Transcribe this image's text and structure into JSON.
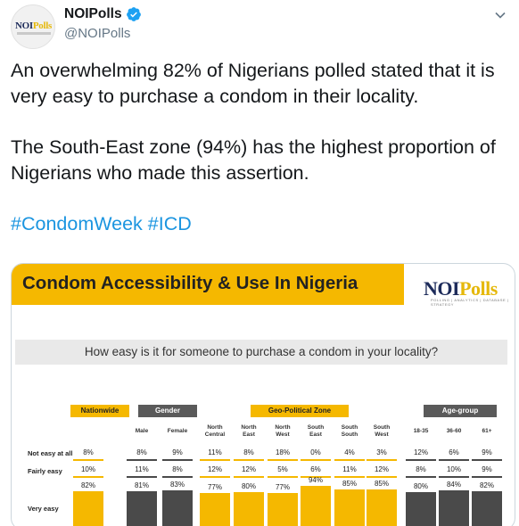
{
  "user": {
    "name": "NOIPolls",
    "handle": "@NOIPolls",
    "avatar_text": "NOI",
    "avatar_text_accent": "Polls"
  },
  "tweet": {
    "paragraph1": "An overwhelming 82% of Nigerians polled stated that it is very easy to purchase a condom in their locality.",
    "paragraph2": "The South-East zone (94%) has the highest proportion of Nigerians who made this assertion.",
    "hashtags": [
      "#CondomWeek",
      "#ICD"
    ]
  },
  "card": {
    "title": "Condom Accessibility & Use In Nigeria",
    "brand": "NOI",
    "brand_accent": "Polls",
    "brand_sub": "POLLING | ANALYTICS | DATABASE | STRATEGY",
    "question": "How easy is it for someone to purchase a condom in your locality?",
    "groups": [
      "Nationwide",
      "Gender",
      "Geo-Political Zone",
      "Age-group"
    ],
    "row_labels": [
      "Not easy at all",
      "Fairly easy",
      "Very easy"
    ]
  },
  "chart_data": {
    "type": "bar",
    "title": "Condom Accessibility & Use In Nigeria",
    "subtitle": "How easy is it for someone to purchase a condom in your locality?",
    "categories": [
      "Nationwide",
      "Male",
      "Female",
      "North Central",
      "North East",
      "North West",
      "South East",
      "South South",
      "South West",
      "18-35",
      "36-60",
      "61+"
    ],
    "category_lines": [
      [
        ""
      ],
      [
        "Male"
      ],
      [
        "Female"
      ],
      [
        "North",
        "Central"
      ],
      [
        "North",
        "East"
      ],
      [
        "North",
        "West"
      ],
      [
        "South",
        "East"
      ],
      [
        "South",
        "South"
      ],
      [
        "South",
        "West"
      ],
      [
        "18-35"
      ],
      [
        "36-60"
      ],
      [
        "61+"
      ]
    ],
    "series": [
      {
        "name": "Not easy at all",
        "values": [
          8,
          8,
          9,
          11,
          8,
          18,
          0,
          4,
          3,
          12,
          6,
          9
        ]
      },
      {
        "name": "Fairly easy",
        "values": [
          10,
          11,
          8,
          12,
          12,
          5,
          6,
          11,
          12,
          8,
          10,
          9
        ]
      },
      {
        "name": "Very easy",
        "values": [
          82,
          81,
          83,
          77,
          80,
          77,
          94,
          85,
          85,
          80,
          84,
          82
        ]
      }
    ],
    "colors": {
      "highlight": "#f5b800",
      "neutral": "#4a4a4a"
    },
    "highlight_groups": [
      "Nationwide",
      "Geo-Political Zone"
    ]
  }
}
